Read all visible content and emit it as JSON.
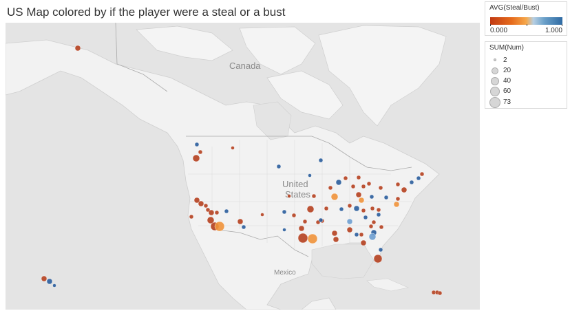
{
  "title": "US Map colored by if the player were a steal or a bust",
  "map_labels": {
    "canada": "Canada",
    "us_line1": "United",
    "us_line2": "States",
    "mexico": "Mexico"
  },
  "legend_color": {
    "title": "AVG(Steal/Bust)",
    "min_label": "0.000",
    "max_label": "1.000"
  },
  "legend_size": {
    "title": "SUM(Num)",
    "items": [
      "2",
      "20",
      "40",
      "60",
      "73"
    ]
  },
  "colors": {
    "bust": "#b5401f",
    "mid": "#f0923a",
    "light_blue": "#6e9fd0",
    "steal": "#2a5d9c",
    "land": "#f2f2f2",
    "water": "#e4e4e4"
  }
}
